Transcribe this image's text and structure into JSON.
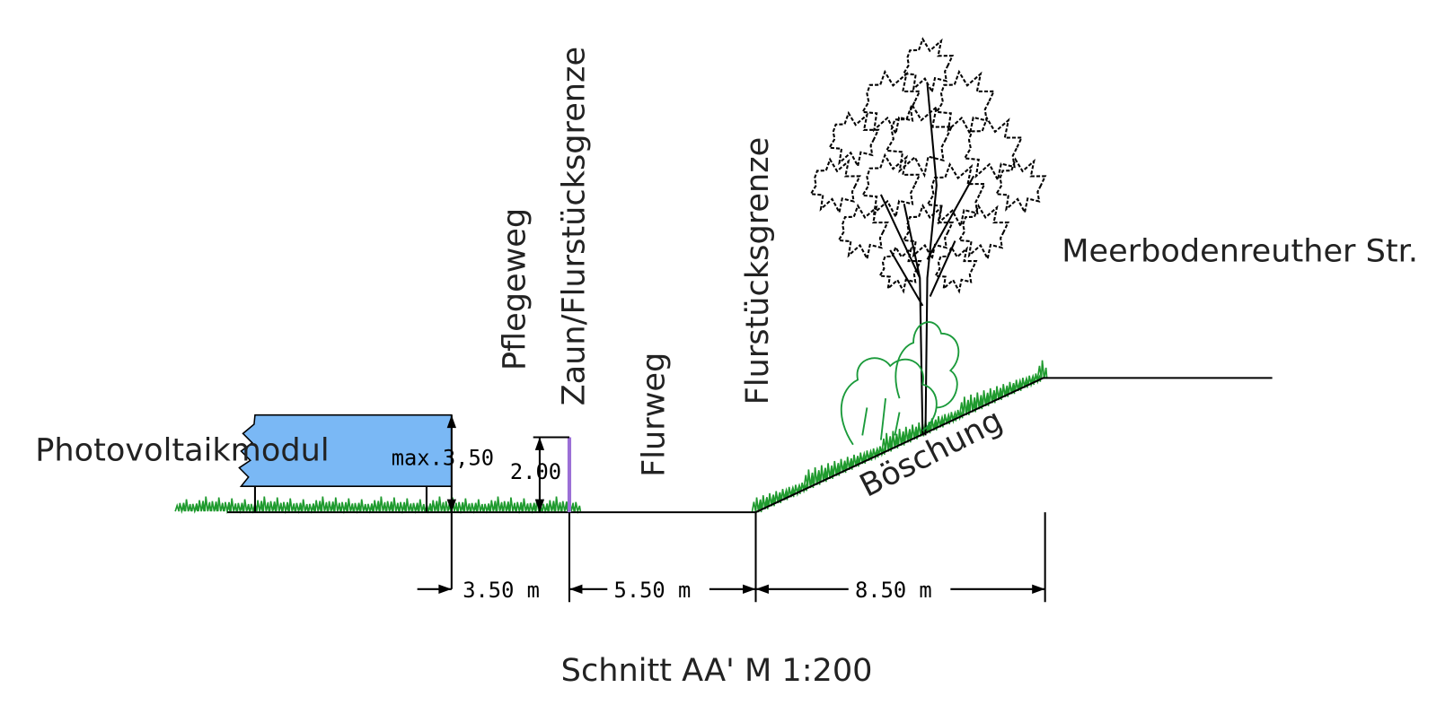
{
  "labels": {
    "module": "Photovoltaikmodul",
    "module_height": "max.3,50",
    "fence_height": "2.00",
    "maintenance_path": "Pflegeweg",
    "fence_boundary": "Zaun/Flurstücksgrenze",
    "field_path": "Flurweg",
    "boundary": "Flurstücksgrenze",
    "street": "Meerbodenreuther Str.",
    "slope": "Böschung"
  },
  "dimensions": [
    "3.50 m",
    "5.50 m",
    "8.50 m"
  ],
  "caption": "Schnitt AA'  M 1:200"
}
